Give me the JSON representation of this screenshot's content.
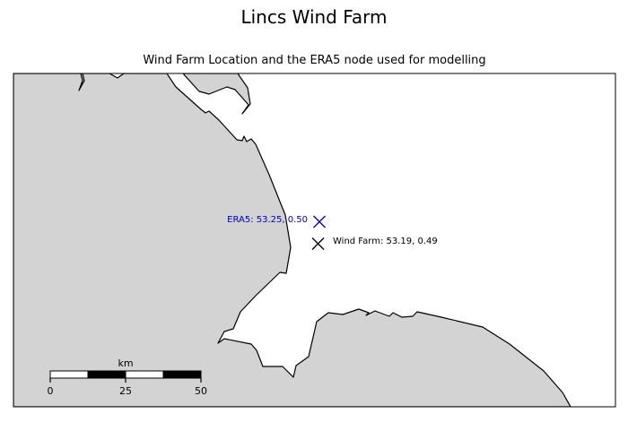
{
  "figure": {
    "title": "Lincs Wind Farm",
    "subtitle": "Wind Farm Location and the ERA5 node used for modelling"
  },
  "map": {
    "land_color": "#d3d3d3",
    "sea_color": "#ffffff",
    "coast_color": "#000000",
    "markers": [
      {
        "id": "era5",
        "label": "ERA5: 53.25, 0.50",
        "lat": 53.25,
        "lon": 0.5,
        "color": "#0000cd",
        "symbol": "x"
      },
      {
        "id": "wind-farm",
        "label": "Wind Farm: 53.19, 0.49",
        "lat": 53.19,
        "lon": 0.49,
        "color": "#000000",
        "symbol": "x"
      }
    ],
    "scale_bar": {
      "unit": "km",
      "ticks": [
        "0",
        "25",
        "50"
      ]
    }
  }
}
